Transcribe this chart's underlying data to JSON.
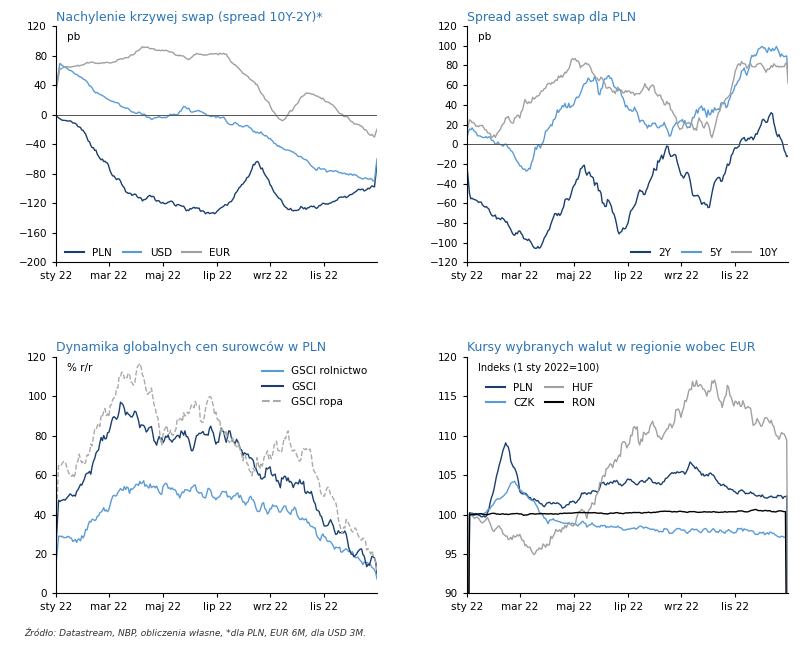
{
  "title1": "Nachylenie krzywej swap (spread 10Y-2Y)*",
  "title2": "Spread asset swap dla PLN",
  "title3": "Dynamika globalnych cen surowców w PLN",
  "title4": "Kursy wybranych walut w regionie wobec EUR",
  "ylabel1": "pb",
  "ylabel2": "pb",
  "ylabel3": "% r/r",
  "ylabel4": "Indeks (1 sty 2022=100)",
  "footnote": "Źródło: Datastream, NBP, obliczenia własne, *dla PLN, EUR 6M, dla USD 3M.",
  "xtick_labels": [
    "sty 22",
    "mar 22",
    "maj 22",
    "lip 22",
    "wrz 22",
    "lis 22"
  ],
  "color_dark_blue": "#1a3f6f",
  "color_light_blue": "#5b9bd5",
  "color_gray": "#a0a0a0",
  "color_black": "#000000",
  "color_title": "#2e75b6",
  "n_points": 250
}
